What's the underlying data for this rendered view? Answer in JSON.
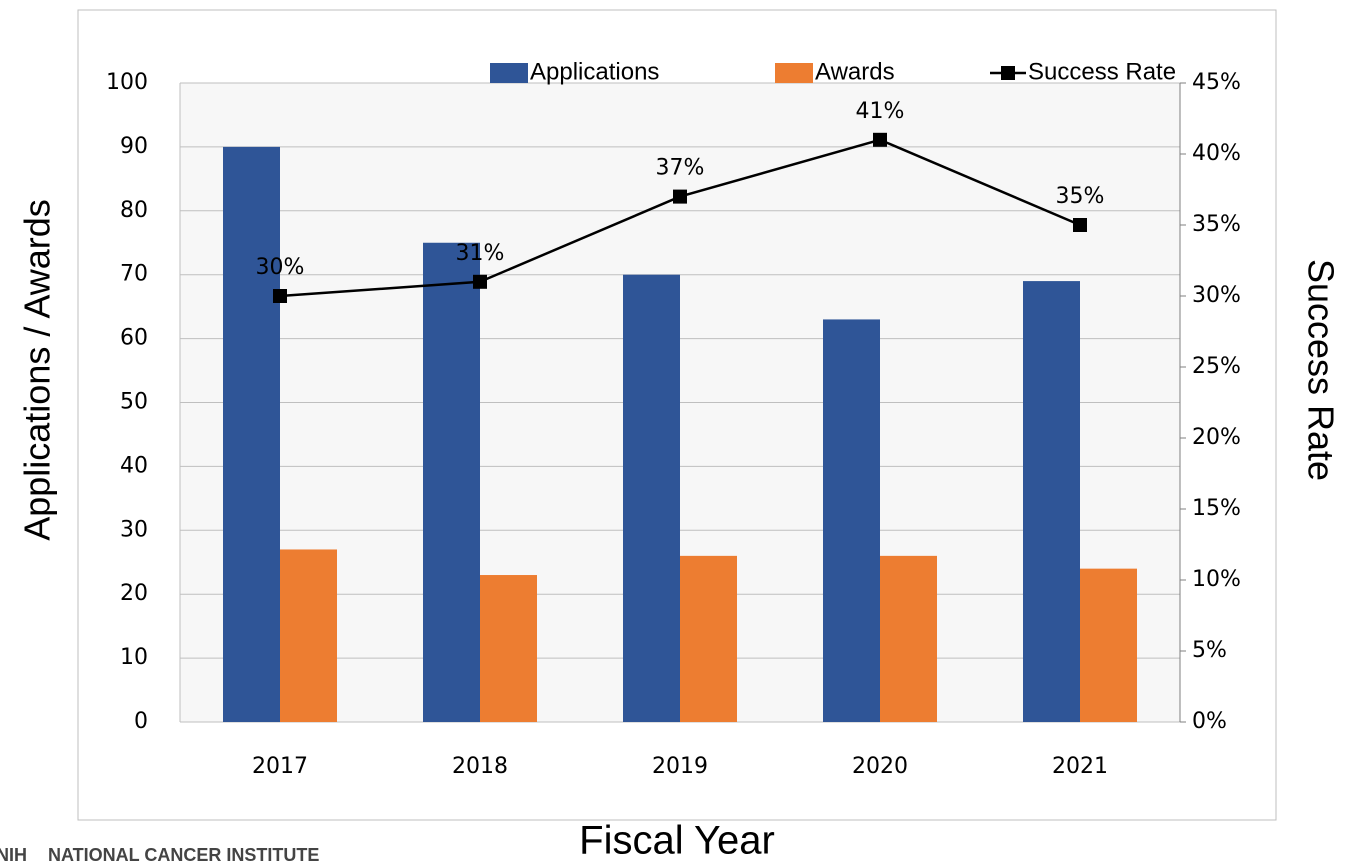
{
  "chart_data": {
    "type": "bar_line",
    "y_label": "Applications / Awards",
    "y2_label": "Success Rate",
    "x_label": "Fiscal Year",
    "footer_logo": "NIH",
    "footer": "NATIONAL CANCER INSTITUTE",
    "categories": [
      "2017",
      "2018",
      "2019",
      "2020",
      "2021"
    ],
    "series": [
      {
        "name": "Applications",
        "type": "bar",
        "color": "#2f5597",
        "values": [
          90,
          75,
          70,
          63,
          69
        ]
      },
      {
        "name": "Awards",
        "type": "bar",
        "color": "#ed7d31",
        "values": [
          27,
          23,
          26,
          26,
          24
        ]
      },
      {
        "name": "Success Rate",
        "type": "line",
        "axis": "y2",
        "color": "#000000",
        "values": [
          30,
          31,
          37,
          41,
          35
        ],
        "value_labels": [
          "30%",
          "31%",
          "37%",
          "41%",
          "35%"
        ]
      }
    ],
    "ylim": [
      0,
      100
    ],
    "yticks": [
      0,
      10,
      20,
      30,
      40,
      50,
      60,
      70,
      80,
      90,
      100
    ],
    "y2lim": [
      0,
      45
    ],
    "y2ticks": [
      {
        "value": 0,
        "label": "0%"
      },
      {
        "value": 5,
        "label": "5%"
      },
      {
        "value": 10,
        "label": "10%"
      },
      {
        "value": 15,
        "label": "15%"
      },
      {
        "value": 20,
        "label": "20%"
      },
      {
        "value": 25,
        "label": "25%"
      },
      {
        "value": 30,
        "label": "30%"
      },
      {
        "value": 35,
        "label": "35%"
      },
      {
        "value": 40,
        "label": "40%"
      },
      {
        "value": 45,
        "label": "45%"
      }
    ],
    "grid": true,
    "legend": "top"
  }
}
